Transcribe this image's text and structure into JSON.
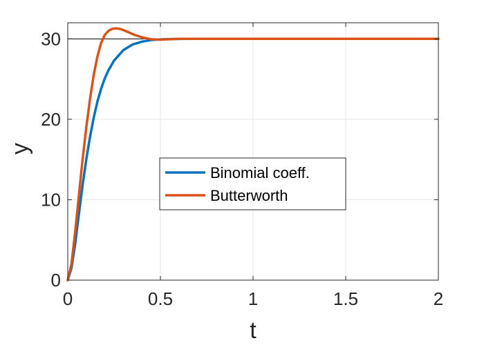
{
  "chart_data": {
    "type": "line",
    "xlabel": "t",
    "ylabel": "y",
    "xlim": [
      0,
      2
    ],
    "ylim": [
      0,
      32
    ],
    "xticks": [
      0,
      0.5,
      1,
      1.5,
      2
    ],
    "xtick_labels": [
      "0",
      "0.5",
      "1",
      "1.5",
      "2"
    ],
    "yticks": [
      0,
      10,
      20,
      30
    ],
    "ytick_labels": [
      "0",
      "10",
      "20",
      "30"
    ],
    "grid": true,
    "legend_position": "center",
    "reference_line": {
      "y": 30,
      "color": "#000000"
    },
    "series": [
      {
        "name": "Binomial coeff.",
        "color": "#0072BD",
        "x": [
          0,
          0.02,
          0.04,
          0.06,
          0.08,
          0.1,
          0.12,
          0.14,
          0.16,
          0.18,
          0.2,
          0.22,
          0.25,
          0.3,
          0.35,
          0.4,
          0.45,
          0.5,
          0.55,
          0.6,
          0.7,
          0.8,
          1.0,
          1.5,
          2.0
        ],
        "y": [
          0,
          1.5,
          4.5,
          8.2,
          11.8,
          15.0,
          17.8,
          20.2,
          22.2,
          23.8,
          25.1,
          26.1,
          27.3,
          28.6,
          29.3,
          29.65,
          29.85,
          29.93,
          29.97,
          29.99,
          30,
          30,
          30,
          30,
          30
        ]
      },
      {
        "name": "Butterworth",
        "color": "#D95319",
        "x": [
          0,
          0.02,
          0.04,
          0.06,
          0.08,
          0.1,
          0.12,
          0.14,
          0.16,
          0.18,
          0.2,
          0.22,
          0.24,
          0.26,
          0.28,
          0.3,
          0.33,
          0.36,
          0.4,
          0.45,
          0.5,
          0.55,
          0.6,
          0.7,
          0.8,
          1.0,
          1.5,
          2.0
        ],
        "y": [
          0,
          2.0,
          6.0,
          10.5,
          15.0,
          19.0,
          22.5,
          25.5,
          27.8,
          29.5,
          30.5,
          31.0,
          31.25,
          31.3,
          31.25,
          31.1,
          30.8,
          30.5,
          30.2,
          29.95,
          29.9,
          29.95,
          30,
          30,
          30,
          30,
          30,
          30
        ]
      }
    ]
  },
  "colors": {
    "axis": "#262626",
    "grid": "#e6e6e6"
  }
}
